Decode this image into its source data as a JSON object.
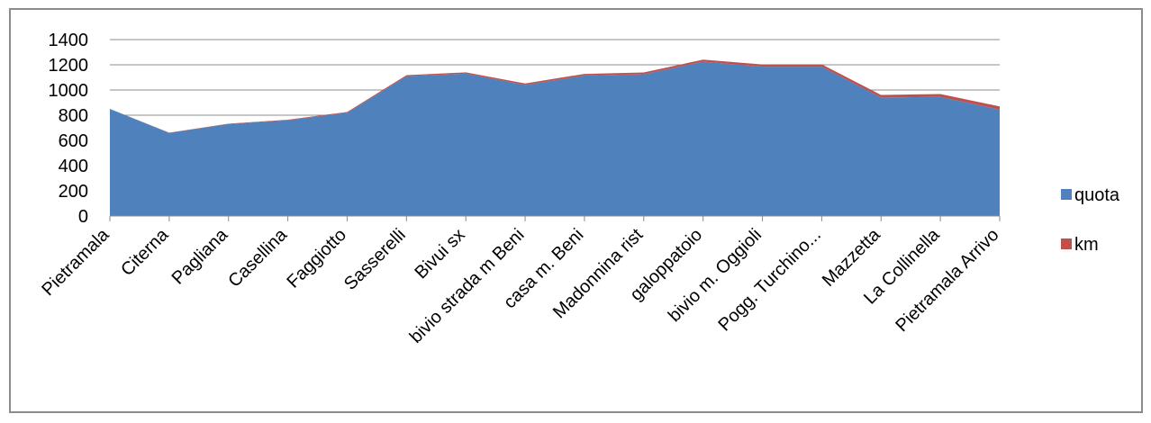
{
  "chart_data": {
    "type": "area",
    "title": "",
    "xlabel": "",
    "ylabel": "",
    "categories": [
      "Pietramala",
      "Citerna",
      "Pagliana",
      "Casellina",
      "Faggiotto",
      "Sasserelli",
      "Bivui sx",
      "bivio strada m Beni",
      "casa m. Beni",
      "Madonnina rist",
      "galoppatoio",
      "bivio m. Oggioli",
      "Pogg. Turchino...",
      "Mazzetta",
      "La Collinella",
      "Pietramala Arrivo"
    ],
    "series": [
      {
        "name": "quota",
        "color": "#4f81bd",
        "values": [
          850,
          660,
          730,
          760,
          820,
          1110,
          1130,
          1040,
          1115,
          1125,
          1225,
          1185,
          1185,
          940,
          945,
          845
        ]
      },
      {
        "name": "km",
        "color": "#c0504d",
        "values": [
          0,
          1.5,
          3,
          4.5,
          6,
          8,
          10,
          11.5,
          13,
          14.5,
          16,
          17.5,
          19,
          21,
          23,
          25
        ]
      }
    ],
    "yticks": [
      0,
      200,
      400,
      600,
      800,
      1000,
      1200,
      1400
    ],
    "ylim": [
      0,
      1400
    ],
    "grid": true,
    "stacked": true,
    "legend_position": "right"
  }
}
